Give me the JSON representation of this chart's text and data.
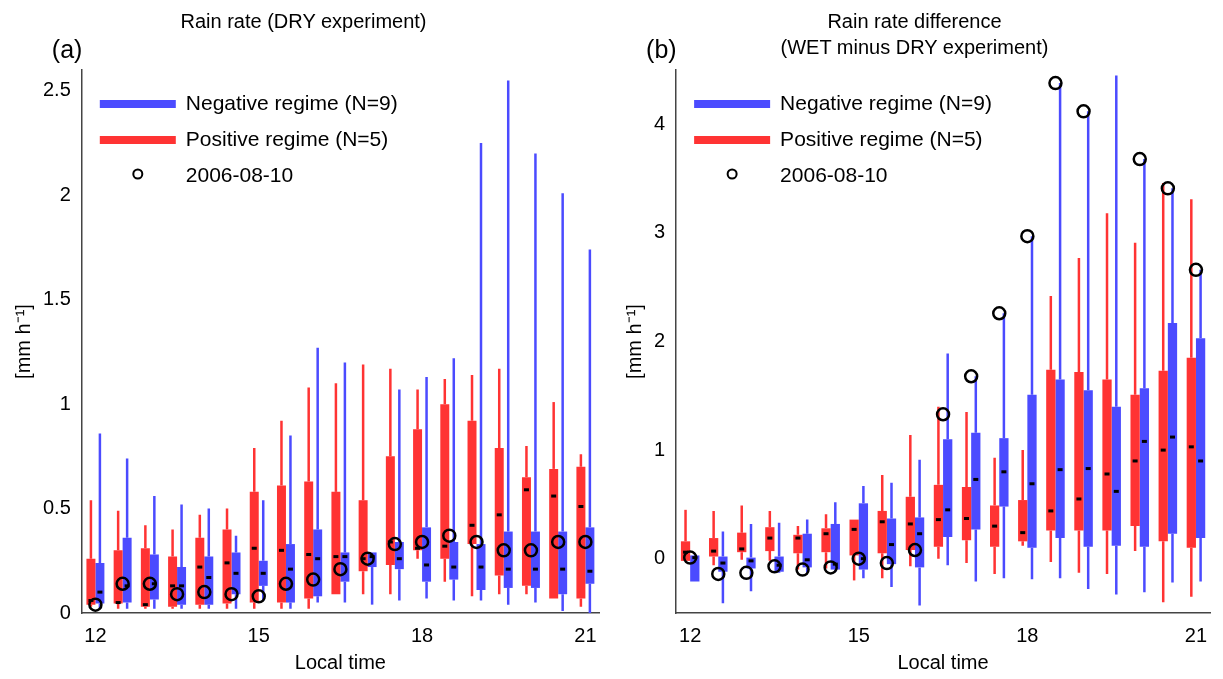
{
  "chart_data": [
    {
      "type": "box",
      "title": "Rain rate (DRY experiment)",
      "xlabel": "Local time",
      "ylabel": "[mm h⁻¹]",
      "annotations": [
        "(a)"
      ],
      "categories": [
        "12",
        null,
        null,
        null,
        null,
        null,
        "15",
        null,
        null,
        null,
        null,
        null,
        "18",
        null,
        null,
        null,
        null,
        null,
        "21"
      ],
      "ylim": [
        0,
        2.6
      ],
      "yticks": [
        0,
        0.5,
        1,
        1.5,
        2,
        2.5
      ],
      "grid": false,
      "legend": "top left",
      "series": [
        {
          "name": "Negative regime (N=9)",
          "color": "#4b4bff",
          "boxes": [
            {
              "low": 0.02,
              "q1": 0.045,
              "median": 0.1,
              "q3": 0.24,
              "high": 0.86
            },
            {
              "low": 0.02,
              "q1": 0.05,
              "median": 0.13,
              "q3": 0.36,
              "high": 0.74
            },
            {
              "low": 0.02,
              "q1": 0.065,
              "median": 0.14,
              "q3": 0.28,
              "high": 0.56
            },
            {
              "low": 0.02,
              "q1": 0.04,
              "median": 0.13,
              "q3": 0.22,
              "high": 0.52
            },
            {
              "low": 0.02,
              "q1": 0.04,
              "median": 0.17,
              "q3": 0.27,
              "high": 0.5
            },
            {
              "low": 0.02,
              "q1": 0.09,
              "median": 0.19,
              "q3": 0.29,
              "high": 0.37
            },
            {
              "low": 0.06,
              "q1": 0.13,
              "median": 0.19,
              "q3": 0.25,
              "high": 0.54
            },
            {
              "low": 0.02,
              "q1": 0.05,
              "median": 0.21,
              "q3": 0.33,
              "high": 0.85
            },
            {
              "low": 0.05,
              "q1": 0.08,
              "median": 0.26,
              "q3": 0.4,
              "high": 1.27
            },
            {
              "low": 0.05,
              "q1": 0.15,
              "median": 0.27,
              "q3": 0.29,
              "high": 1.2
            },
            {
              "low": 0.04,
              "q1": 0.22,
              "median": 0.27,
              "q3": 0.29,
              "high": 0.29
            },
            {
              "low": 0.06,
              "q1": 0.21,
              "median": 0.26,
              "q3": 0.34,
              "high": 1.07
            },
            {
              "low": 0.07,
              "q1": 0.15,
              "median": 0.23,
              "q3": 0.41,
              "high": 1.13
            },
            {
              "low": 0.06,
              "q1": 0.16,
              "median": 0.22,
              "q3": 0.34,
              "high": 1.22
            },
            {
              "low": 0.06,
              "q1": 0.11,
              "median": 0.22,
              "q3": 0.33,
              "high": 2.25
            },
            {
              "low": 0.04,
              "q1": 0.12,
              "median": 0.21,
              "q3": 0.39,
              "high": 2.55
            },
            {
              "low": 0.05,
              "q1": 0.12,
              "median": 0.21,
              "q3": 0.39,
              "high": 2.2
            },
            {
              "low": 0.01,
              "q1": 0.09,
              "median": 0.21,
              "q3": 0.39,
              "high": 2.01
            },
            {
              "low": 0,
              "q1": 0.14,
              "median": 0.2,
              "q3": 0.41,
              "high": 1.74
            }
          ]
        },
        {
          "name": "Positive regime (N=5)",
          "color": "#ff3333",
          "boxes": [
            {
              "low": 0.03,
              "q1": 0.04,
              "median": 0.06,
              "q3": 0.26,
              "high": 0.54
            },
            {
              "low": 0.02,
              "q1": 0.045,
              "median": 0.05,
              "q3": 0.3,
              "high": 0.49
            },
            {
              "low": 0.02,
              "q1": 0.03,
              "median": 0.04,
              "q3": 0.31,
              "high": 0.42
            },
            {
              "low": 0.02,
              "q1": 0.03,
              "median": 0.13,
              "q3": 0.27,
              "high": 0.4
            },
            {
              "low": 0.02,
              "q1": 0.04,
              "median": 0.22,
              "q3": 0.36,
              "high": 0.47
            },
            {
              "low": 0.02,
              "q1": 0.045,
              "median": 0.24,
              "q3": 0.4,
              "high": 0.5
            },
            {
              "low": 0.02,
              "q1": 0.05,
              "median": 0.31,
              "q3": 0.58,
              "high": 0.79
            },
            {
              "low": 0.02,
              "q1": 0.05,
              "median": 0.3,
              "q3": 0.61,
              "high": 0.92
            },
            {
              "low": 0.02,
              "q1": 0.07,
              "median": 0.28,
              "q3": 0.63,
              "high": 1.08
            },
            {
              "low": 0.09,
              "q1": 0.09,
              "median": 0.27,
              "q3": 0.58,
              "high": 1.1
            },
            {
              "low": 0.09,
              "q1": 0.2,
              "median": 0.26,
              "q3": 0.54,
              "high": 1.19
            },
            {
              "low": 0.09,
              "q1": 0.23,
              "median": 0.34,
              "q3": 0.75,
              "high": 1.17
            },
            {
              "low": 0.26,
              "q1": 0.3,
              "median": 0.31,
              "q3": 0.88,
              "high": 1.07
            },
            {
              "low": 0.15,
              "q1": 0.26,
              "median": 0.32,
              "q3": 1.0,
              "high": 1.12
            },
            {
              "low": 0.08,
              "q1": 0.33,
              "median": 0.42,
              "q3": 0.92,
              "high": 1.14
            },
            {
              "low": 0.09,
              "q1": 0.18,
              "median": 0.47,
              "q3": 0.79,
              "high": 1.17
            },
            {
              "low": 0.09,
              "q1": 0.13,
              "median": 0.59,
              "q3": 0.65,
              "high": 0.8
            },
            {
              "low": 0.07,
              "q1": 0.07,
              "median": 0.56,
              "q3": 0.69,
              "high": 1.01
            },
            {
              "low": 0.03,
              "q1": 0.07,
              "median": 0.51,
              "q3": 0.7,
              "high": 0.76
            }
          ]
        },
        {
          "name": "2006-08-10",
          "type": "scatter",
          "color": "#000000",
          "marker": "circle",
          "values": [
            0.04,
            0.14,
            0.14,
            0.09,
            0.1,
            0.09,
            0.08,
            0.14,
            0.16,
            0.21,
            0.26,
            0.33,
            0.34,
            0.37,
            0.34,
            0.3,
            0.3,
            0.34,
            0.34
          ]
        }
      ]
    },
    {
      "type": "box",
      "title": "Rain rate difference",
      "subtitle": "(WET minus DRY experiment)",
      "xlabel": "Local time",
      "ylabel": "[mm h⁻¹]",
      "annotations": [
        "(b)"
      ],
      "categories": [
        "12",
        null,
        null,
        null,
        null,
        null,
        "15",
        null,
        null,
        null,
        null,
        null,
        "18",
        null,
        null,
        null,
        null,
        null,
        "21"
      ],
      "ylim": [
        -0.5,
        4.5
      ],
      "yticks": [
        0,
        1,
        2,
        3,
        4
      ],
      "grid": false,
      "legend": "top left",
      "series": [
        {
          "name": "Negative regime (N=9)",
          "color": "#4b4bff",
          "boxes": [
            {
              "low": -0.21,
              "q1": -0.21,
              "median": 0.01,
              "q3": 0.03,
              "high": 0.03
            },
            {
              "low": -0.41,
              "q1": -0.12,
              "median": -0.04,
              "q3": 0.02,
              "high": 0.25
            },
            {
              "low": -0.3,
              "q1": -0.09,
              "median": -0.02,
              "q3": 0.01,
              "high": 0.32
            },
            {
              "low": -0.13,
              "q1": -0.12,
              "median": -0.06,
              "q3": 0.02,
              "high": 0.33
            },
            {
              "low": -0.13,
              "q1": -0.08,
              "median": -0.01,
              "q3": 0.23,
              "high": 0.36
            },
            {
              "low": -0.12,
              "q1": -0.1,
              "median": -0.05,
              "q3": 0.32,
              "high": 0.52
            },
            {
              "low": -0.18,
              "q1": -0.1,
              "median": 0.0,
              "q3": 0.51,
              "high": 0.67
            },
            {
              "low": -0.26,
              "q1": -0.05,
              "median": 0.13,
              "q3": 0.37,
              "high": 0.7
            },
            {
              "low": -0.43,
              "q1": -0.08,
              "median": 0.23,
              "q3": 0.38,
              "high": 0.91
            },
            {
              "low": -0.06,
              "q1": 0.2,
              "median": 0.45,
              "q3": 1.1,
              "high": 1.89
            },
            {
              "low": -0.21,
              "q1": 0.27,
              "median": 0.73,
              "q3": 1.16,
              "high": 1.68
            },
            {
              "low": -0.18,
              "q1": 0.48,
              "median": 0.8,
              "q3": 1.11,
              "high": 2.26
            },
            {
              "low": -0.19,
              "q1": 0.1,
              "median": 0.69,
              "q3": 1.51,
              "high": 2.97
            },
            {
              "low": -0.18,
              "q1": 0.19,
              "median": 0.82,
              "q3": 1.65,
              "high": 4.38
            },
            {
              "low": -0.28,
              "q1": 0.11,
              "median": 0.83,
              "q3": 1.55,
              "high": 4.12
            },
            {
              "low": -0.33,
              "q1": 0.12,
              "median": 0.62,
              "q3": 1.4,
              "high": 4.45
            },
            {
              "low": -0.31,
              "q1": 0.11,
              "median": 1.08,
              "q3": 1.57,
              "high": 3.68
            },
            {
              "low": -0.22,
              "q1": 0.23,
              "median": 1.12,
              "q3": 2.17,
              "high": 3.41
            },
            {
              "low": -0.21,
              "q1": 0.19,
              "median": 0.9,
              "q3": 2.03,
              "high": 2.66
            }
          ]
        },
        {
          "name": "Positive regime (N=5)",
          "color": "#ff3333",
          "boxes": [
            {
              "low": -0.02,
              "q1": -0.02,
              "median": 0.06,
              "q3": 0.16,
              "high": 0.45
            },
            {
              "low": -0.06,
              "q1": 0.02,
              "median": 0.07,
              "q3": 0.19,
              "high": 0.44
            },
            {
              "low": -0.01,
              "q1": 0.06,
              "median": 0.09,
              "q3": 0.24,
              "high": 0.49
            },
            {
              "low": -0.02,
              "q1": 0.07,
              "median": 0.19,
              "q3": 0.29,
              "high": 0.44
            },
            {
              "low": -0.1,
              "q1": 0.05,
              "median": 0.19,
              "q3": 0.22,
              "high": 0.3
            },
            {
              "low": -0.09,
              "q1": 0.06,
              "median": 0.23,
              "q3": 0.28,
              "high": 0.41
            },
            {
              "low": -0.2,
              "q1": 0.03,
              "median": 0.27,
              "q3": 0.36,
              "high": 0.36
            },
            {
              "low": -0.18,
              "q1": 0.05,
              "median": 0.34,
              "q3": 0.44,
              "high": 0.77
            },
            {
              "low": -0.07,
              "q1": 0.08,
              "median": 0.32,
              "q3": 0.57,
              "high": 1.14
            },
            {
              "low": 0.0,
              "q1": 0.11,
              "median": 0.36,
              "q3": 0.68,
              "high": 1.4
            },
            {
              "low": -0.04,
              "q1": 0.17,
              "median": 0.37,
              "q3": 0.66,
              "high": 1.35
            },
            {
              "low": -0.14,
              "q1": 0.11,
              "median": 0.3,
              "q3": 0.49,
              "high": 0.93
            },
            {
              "low": 0.12,
              "q1": 0.16,
              "median": 0.24,
              "q3": 0.54,
              "high": 1.0
            },
            {
              "low": -0.03,
              "q1": 0.26,
              "median": 0.44,
              "q3": 1.74,
              "high": 2.42
            },
            {
              "low": -0.13,
              "q1": 0.26,
              "median": 0.55,
              "q3": 1.72,
              "high": 2.77
            },
            {
              "low": -0.14,
              "q1": 0.26,
              "median": 0.78,
              "q3": 1.65,
              "high": 3.18
            },
            {
              "low": 0.07,
              "q1": 0.3,
              "median": 0.9,
              "q3": 1.51,
              "high": 2.91
            },
            {
              "low": -0.4,
              "q1": 0.16,
              "median": 1.0,
              "q3": 1.73,
              "high": 3.46
            },
            {
              "low": -0.35,
              "q1": 0.1,
              "median": 1.03,
              "q3": 1.85,
              "high": 3.31
            }
          ]
        },
        {
          "name": "2006-08-10",
          "type": "scatter",
          "color": "#000000",
          "marker": "circle",
          "values": [
            0.01,
            -0.14,
            -0.13,
            -0.07,
            -0.1,
            -0.08,
            0.0,
            -0.04,
            0.08,
            1.33,
            1.68,
            2.26,
            2.97,
            4.38,
            4.12,
            null,
            3.68,
            3.41,
            2.66
          ]
        }
      ]
    }
  ]
}
